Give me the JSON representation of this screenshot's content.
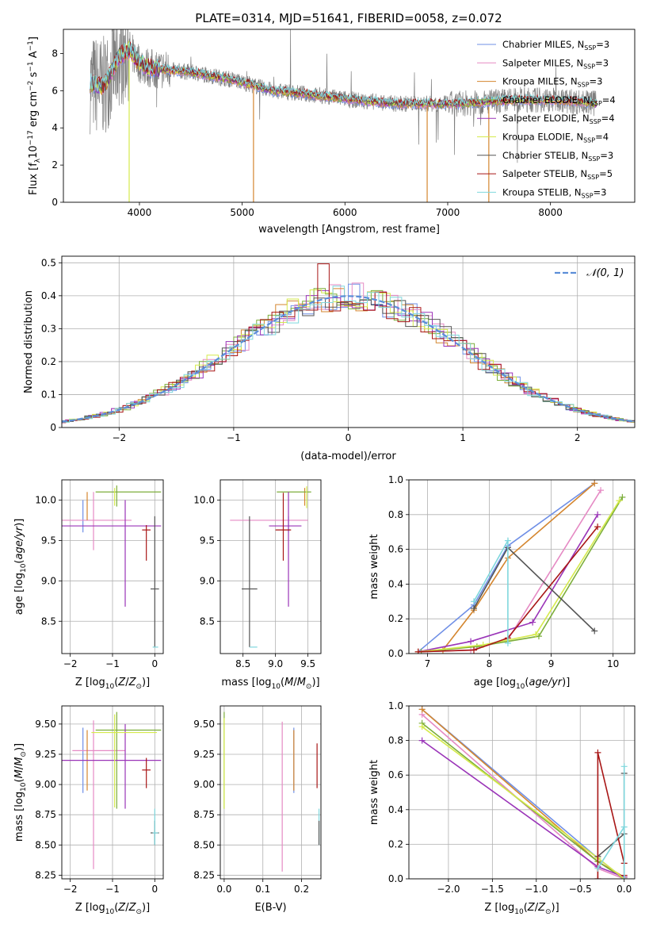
{
  "figure_title": "PLATE=0314, MJD=51641, FIBERID=0058, z=0.072",
  "colors": {
    "chab_miles": "#6f8fe6",
    "salp_miles": "#e58ac4",
    "krou_miles": "#d4862f",
    "chab_elodie": "#7cae3a",
    "salp_elodie": "#9a34b8",
    "krou_elodie": "#d5ea4c",
    "chab_stelib": "#555555",
    "salp_stelib": "#a81616",
    "krou_stelib": "#7fd7dd",
    "data": "#7f7f7f",
    "gauss": "#5b8ed8"
  },
  "chart_data": [
    {
      "id": "spectrum",
      "type": "line",
      "title": "PLATE=0314, MJD=51641, FIBERID=0058, z=0.072",
      "xlabel": "wavelength [Angstrom, rest frame]",
      "ylabel": "Flux [f_λ 10^-17 erg cm^-2 s^-1 A^-1]",
      "xlim": [
        3260,
        8820
      ],
      "ylim": [
        0,
        9.3
      ],
      "xticks": [
        4000,
        5000,
        6000,
        7000,
        8000
      ],
      "yticks": [
        0,
        2,
        4,
        6,
        8
      ],
      "legend": "right",
      "continuum": [
        [
          3520,
          6.4
        ],
        [
          3650,
          6.2
        ],
        [
          3800,
          7.8
        ],
        [
          3900,
          8.2
        ],
        [
          4000,
          7.5
        ],
        [
          4100,
          7.2
        ],
        [
          4300,
          7.1
        ],
        [
          4500,
          7.0
        ],
        [
          4700,
          6.8
        ],
        [
          4900,
          6.6
        ],
        [
          5100,
          6.3
        ],
        [
          5300,
          6.0
        ],
        [
          5500,
          5.9
        ],
        [
          5800,
          5.7
        ],
        [
          6100,
          5.5
        ],
        [
          6500,
          5.3
        ],
        [
          6800,
          5.3
        ],
        [
          7100,
          5.3
        ],
        [
          7400,
          5.4
        ],
        [
          7700,
          5.5
        ],
        [
          8000,
          5.5
        ],
        [
          8300,
          5.4
        ],
        [
          8450,
          5.3
        ]
      ],
      "series": [
        {
          "name": "Chabrier MILES, N_SSP=3",
          "label_main": "Chabrier MILES, N",
          "label_sub": "SSP",
          "label_end": "=3",
          "color": "#6f8fe6"
        },
        {
          "name": "Salpeter MILES, N_SSP=3",
          "label_main": "Salpeter MILES, N",
          "label_sub": "SSP",
          "label_end": "=3",
          "color": "#e58ac4"
        },
        {
          "name": "Kroupa MILES, N_SSP=3",
          "label_main": "Kroupa MILES, N",
          "label_sub": "SSP",
          "label_end": "=3",
          "color": "#d4862f"
        },
        {
          "name": "Chabrier ELODIE, N_SSP=4",
          "label_main": "Chabrier ELODIE, N",
          "label_sub": "SSP",
          "label_end": "=4",
          "color": "#7cae3a"
        },
        {
          "name": "Salpeter ELODIE, N_SSP=4",
          "label_main": "Salpeter ELODIE, N",
          "label_sub": "SSP",
          "label_end": "=4",
          "color": "#9a34b8"
        },
        {
          "name": "Kroupa ELODIE, N_SSP=4",
          "label_main": "Kroupa ELODIE, N",
          "label_sub": "SSP",
          "label_end": "=4",
          "color": "#d5ea4c"
        },
        {
          "name": "Chabrier STELIB, N_SSP=3",
          "label_main": "Chabrier STELIB, N",
          "label_sub": "SSP",
          "label_end": "=3",
          "color": "#555555"
        },
        {
          "name": "Salpeter STELIB, N_SSP=5",
          "label_main": "Salpeter STELIB, N",
          "label_sub": "SSP",
          "label_end": "=5",
          "color": "#a81616"
        },
        {
          "name": "Kroupa STELIB, N_SSP=3",
          "label_main": "Kroupa STELIB, N",
          "label_sub": "SSP",
          "label_end": "=3",
          "color": "#7fd7dd"
        }
      ]
    },
    {
      "id": "residuals",
      "type": "histogram",
      "xlabel": "(data-model)/error",
      "ylabel": "Normed distribution",
      "xlim": [
        -2.5,
        2.5
      ],
      "ylim": [
        0,
        0.52
      ],
      "xticks": [
        -2,
        -1,
        0,
        1,
        2
      ],
      "yticks": [
        0.0,
        0.1,
        0.2,
        0.3,
        0.4,
        0.5
      ],
      "grid": true,
      "legend": "top-right",
      "gauss_label": "𝒩(0, 1)",
      "bin_width": 0.1
    },
    {
      "id": "age_vs_Z",
      "type": "errorbar",
      "xlabel": "Z [log10(Z/Z⊙)]",
      "ylabel": "age [log10(age/yr)]",
      "xlim": [
        -2.2,
        0.2
      ],
      "ylim": [
        8.1,
        10.25
      ],
      "xticks": [
        -2,
        -1,
        0
      ],
      "yticks": [
        8.5,
        9.0,
        9.5,
        10.0
      ],
      "grid": true,
      "points": [
        {
          "c": "chab_miles",
          "x": -1.7,
          "xe": [
            0,
            0
          ],
          "y": 9.85,
          "ye": [
            0.25,
            0.15
          ]
        },
        {
          "c": "salp_miles",
          "x": -1.45,
          "xe": [
            0.85,
            0.9
          ],
          "y": 9.75,
          "ye": [
            0.37,
            0.35
          ]
        },
        {
          "c": "krou_miles",
          "x": -1.6,
          "xe": [
            0,
            0
          ],
          "y": 9.95,
          "ye": [
            0.2,
            0.15
          ]
        },
        {
          "c": "chab_elodie",
          "x": -0.9,
          "xe": [
            0.5,
            1.05
          ],
          "y": 10.1,
          "ye": [
            0.18,
            0.08
          ]
        },
        {
          "c": "salp_elodie",
          "x": -0.7,
          "xe": [
            1.5,
            0.85
          ],
          "y": 9.68,
          "ye": [
            1.0,
            0.32
          ]
        },
        {
          "c": "krou_elodie",
          "x": -0.95,
          "xe": [
            0,
            0
          ],
          "y": 10.05,
          "ye": [
            0.12,
            0.1
          ]
        },
        {
          "c": "chab_stelib",
          "x": 0.0,
          "xe": [
            0.1,
            0.1
          ],
          "y": 8.9,
          "ye": [
            0.72,
            0.9
          ]
        },
        {
          "c": "salp_stelib",
          "x": -0.2,
          "xe": [
            0.1,
            0.1
          ],
          "y": 9.63,
          "ye": [
            0.38,
            0.06
          ]
        },
        {
          "c": "krou_stelib",
          "x": 0.0,
          "xe": [
            0.05,
            0.08
          ],
          "y": 8.18,
          "ye": [
            0,
            0
          ]
        }
      ]
    },
    {
      "id": "age_vs_mass",
      "type": "errorbar",
      "xlabel": "mass [log10(M/M⊙)]",
      "ylabel": "",
      "xlim": [
        8.15,
        9.7
      ],
      "ylim": [
        8.1,
        10.25
      ],
      "xticks": [
        8.5,
        9.0,
        9.5
      ],
      "yticks": [
        8.5,
        9.0,
        9.5,
        10.0
      ],
      "grid": true,
      "points": [
        {
          "c": "chab_miles",
          "x": 9.2,
          "xe": [
            0,
            0
          ],
          "y": 9.7,
          "ye": [
            0.1,
            0.1
          ]
        },
        {
          "c": "salp_miles",
          "x": 9.25,
          "xe": [
            0.95,
            0.25
          ],
          "y": 9.75,
          "ye": [
            0,
            0
          ]
        },
        {
          "c": "krou_miles",
          "x": 9.45,
          "xe": [
            0,
            0
          ],
          "y": 10.05,
          "ye": [
            0.12,
            0.1
          ]
        },
        {
          "c": "chab_elodie",
          "x": 9.3,
          "xe": [
            0.28,
            0.25
          ],
          "y": 10.1,
          "ye": [
            0,
            0
          ]
        },
        {
          "c": "salp_elodie",
          "x": 9.2,
          "xe": [
            0.3,
            0.2
          ],
          "y": 9.68,
          "ye": [
            1.0,
            0.42
          ]
        },
        {
          "c": "krou_elodie",
          "x": 9.48,
          "xe": [
            0,
            0
          ],
          "y": 10.05,
          "ye": [
            0.15,
            0.12
          ]
        },
        {
          "c": "chab_stelib",
          "x": 8.6,
          "xe": [
            0.12,
            0.12
          ],
          "y": 8.9,
          "ye": [
            0.72,
            0.9
          ]
        },
        {
          "c": "salp_stelib",
          "x": 9.12,
          "xe": [
            0.12,
            0.12
          ],
          "y": 9.63,
          "ye": [
            0.38,
            0.46
          ]
        },
        {
          "c": "krou_stelib",
          "x": 8.6,
          "xe": [
            0,
            0.12
          ],
          "y": 8.18,
          "ye": [
            0,
            0
          ]
        }
      ]
    },
    {
      "id": "weight_vs_age",
      "type": "line",
      "xlabel": "age [log10(age/yr)]",
      "ylabel": "mass weight",
      "xlim": [
        6.7,
        10.35
      ],
      "ylim": [
        0,
        1.0
      ],
      "xticks": [
        7,
        8,
        9,
        10
      ],
      "yticks": [
        0.0,
        0.2,
        0.4,
        0.6,
        0.8,
        1.0
      ],
      "grid": true,
      "series": [
        {
          "c": "chab_miles",
          "x": [
            6.85,
            7.75,
            8.3,
            9.7
          ],
          "y": [
            0.01,
            0.28,
            0.62,
            0.98
          ]
        },
        {
          "c": "salp_miles",
          "x": [
            6.85,
            7.7,
            8.3,
            9.8
          ],
          "y": [
            0.01,
            0.02,
            0.08,
            0.94
          ]
        },
        {
          "c": "krou_miles",
          "x": [
            7.25,
            7.75,
            8.3,
            9.7
          ],
          "y": [
            0.02,
            0.25,
            0.55,
            0.98
          ]
        },
        {
          "c": "chab_elodie",
          "x": [
            6.9,
            7.8,
            8.8,
            10.15
          ],
          "y": [
            0.01,
            0.04,
            0.1,
            0.9
          ]
        },
        {
          "c": "salp_elodie",
          "x": [
            6.85,
            7.7,
            8.7,
            9.75
          ],
          "y": [
            0.01,
            0.07,
            0.18,
            0.8
          ]
        },
        {
          "c": "krou_elodie",
          "x": [
            6.85,
            7.9,
            8.75,
            10.1
          ],
          "y": [
            0.01,
            0.05,
            0.11,
            0.88
          ]
        },
        {
          "c": "chab_stelib",
          "x": [
            7.75,
            8.3,
            9.7
          ],
          "y": [
            0.26,
            0.61,
            0.13
          ]
        },
        {
          "c": "salp_stelib",
          "x": [
            6.85,
            7.75,
            8.3,
            9.75
          ],
          "y": [
            0.01,
            0.02,
            0.09,
            0.73
          ]
        },
        {
          "c": "krou_stelib",
          "x": [
            7.75,
            8.3,
            8.3
          ],
          "y": [
            0.3,
            0.65,
            0.06
          ]
        }
      ]
    },
    {
      "id": "mass_vs_Z",
      "type": "errorbar",
      "xlabel": "Z [log10(Z/Z⊙)]",
      "ylabel": "mass [log10(M/M⊙)]",
      "xlim": [
        -2.2,
        0.2
      ],
      "ylim": [
        8.22,
        9.65
      ],
      "xticks": [
        -2,
        -1,
        0
      ],
      "yticks": [
        8.25,
        8.5,
        8.75,
        9.0,
        9.25,
        9.5
      ],
      "grid": true,
      "points": [
        {
          "c": "chab_miles",
          "x": -1.7,
          "xe": [
            0,
            0
          ],
          "y": 9.2,
          "ye": [
            0.27,
            0.27
          ]
        },
        {
          "c": "salp_miles",
          "x": -1.45,
          "xe": [
            0.5,
            0.75
          ],
          "y": 9.28,
          "ye": [
            0.98,
            0.25
          ]
        },
        {
          "c": "krou_miles",
          "x": -1.6,
          "xe": [
            0,
            0
          ],
          "y": 9.2,
          "ye": [
            0.25,
            0.25
          ]
        },
        {
          "c": "chab_elodie",
          "x": -0.9,
          "xe": [
            0.5,
            1.05
          ],
          "y": 9.45,
          "ye": [
            0.65,
            0.15
          ]
        },
        {
          "c": "salp_elodie",
          "x": -0.7,
          "xe": [
            1.5,
            0.85
          ],
          "y": 9.2,
          "ye": [
            0.4,
            0.3
          ]
        },
        {
          "c": "krou_elodie",
          "x": -0.95,
          "xe": [
            0.55,
            1.0
          ],
          "y": 9.43,
          "ye": [
            0.62,
            0.15
          ]
        },
        {
          "c": "chab_stelib",
          "x": 0.0,
          "xe": [
            0.1,
            0.1
          ],
          "y": 8.6,
          "ye": [
            0.1,
            0.1
          ]
        },
        {
          "c": "salp_stelib",
          "x": -0.2,
          "xe": [
            0.1,
            0.1
          ],
          "y": 9.12,
          "ye": [
            0.15,
            0.1
          ]
        },
        {
          "c": "krou_stelib",
          "x": 0.0,
          "xe": [
            0.05,
            0.08
          ],
          "y": 8.6,
          "ye": [
            0.1,
            0.2
          ]
        }
      ]
    },
    {
      "id": "mass_vs_ebv",
      "type": "errorbar",
      "xlabel": "E(B-V)",
      "ylabel": "",
      "xlim": [
        -0.01,
        0.25
      ],
      "ylim": [
        8.22,
        9.65
      ],
      "xticks": [
        0.0,
        0.1,
        0.2
      ],
      "yticks": [
        8.25,
        8.5,
        8.75,
        9.0,
        9.25,
        9.5
      ],
      "grid": true,
      "points": [
        {
          "c": "chab_elodie",
          "x": 0.0,
          "xe": [
            0,
            0
          ],
          "y": 9.2,
          "ye": [
            0.4,
            0.4
          ]
        },
        {
          "c": "krou_elodie",
          "x": 0.0,
          "xe": [
            0,
            0
          ],
          "y": 9.2,
          "ye": [
            0.4,
            0.35
          ]
        },
        {
          "c": "salp_miles",
          "x": 0.15,
          "xe": [
            0,
            0
          ],
          "y": 8.9,
          "ye": [
            0.62,
            0.62
          ]
        },
        {
          "c": "chab_miles",
          "x": 0.18,
          "xe": [
            0,
            0
          ],
          "y": 9.2,
          "ye": [
            0.27,
            0.27
          ]
        },
        {
          "c": "krou_miles",
          "x": 0.18,
          "xe": [
            0,
            0
          ],
          "y": 9.2,
          "ye": [
            0.25,
            0.25
          ]
        },
        {
          "c": "salp_stelib",
          "x": 0.24,
          "xe": [
            0,
            0
          ],
          "y": 9.12,
          "ye": [
            0.15,
            0.22
          ]
        },
        {
          "c": "krou_stelib",
          "x": 0.245,
          "xe": [
            0,
            0
          ],
          "y": 8.6,
          "ye": [
            0.1,
            0.2
          ]
        },
        {
          "c": "chab_stelib",
          "x": 0.245,
          "xe": [
            0,
            0
          ],
          "y": 8.6,
          "ye": [
            0.1,
            0.1
          ]
        }
      ]
    },
    {
      "id": "weight_vs_Z",
      "type": "line",
      "xlabel": "Z [log10(Z/Z⊙)]",
      "ylabel": "mass weight",
      "xlim": [
        -2.45,
        0.12
      ],
      "ylim": [
        0,
        1.0
      ],
      "xticks": [
        -2.0,
        -1.5,
        -1.0,
        -0.5,
        0.0
      ],
      "yticks": [
        0.0,
        0.2,
        0.4,
        0.6,
        0.8,
        1.0
      ],
      "grid": true,
      "series": [
        {
          "c": "chab_miles",
          "x": [
            -2.3,
            -0.3,
            0.0
          ],
          "y": [
            0.98,
            0.12,
            0.0
          ]
        },
        {
          "c": "salp_miles",
          "x": [
            -2.3,
            -0.3,
            0.0
          ],
          "y": [
            0.95,
            0.06,
            0.0
          ]
        },
        {
          "c": "krou_miles",
          "x": [
            -2.3,
            -0.3,
            0.0
          ],
          "y": [
            0.98,
            0.1,
            0.01
          ]
        },
        {
          "c": "chab_elodie",
          "x": [
            -2.3,
            -0.3,
            0.0
          ],
          "y": [
            0.9,
            0.1,
            0.0
          ]
        },
        {
          "c": "salp_elodie",
          "x": [
            -2.3,
            -0.3,
            0.0
          ],
          "y": [
            0.8,
            0.07,
            0.01
          ]
        },
        {
          "c": "krou_elodie",
          "x": [
            -2.3,
            -0.3,
            0.0
          ],
          "y": [
            0.88,
            0.12,
            0.0
          ]
        },
        {
          "c": "chab_stelib",
          "x": [
            -0.3,
            0.0,
            0.0
          ],
          "y": [
            0.13,
            0.26,
            0.61
          ]
        },
        {
          "c": "salp_stelib",
          "x": [
            -0.3,
            -0.3,
            0.0,
            0.0
          ],
          "y": [
            0.0,
            0.73,
            0.09,
            0.02
          ]
        },
        {
          "c": "krou_stelib",
          "x": [
            -0.3,
            0.0,
            0.0,
            0.0
          ],
          "y": [
            0.06,
            0.3,
            0.65,
            0.0
          ]
        }
      ]
    }
  ]
}
